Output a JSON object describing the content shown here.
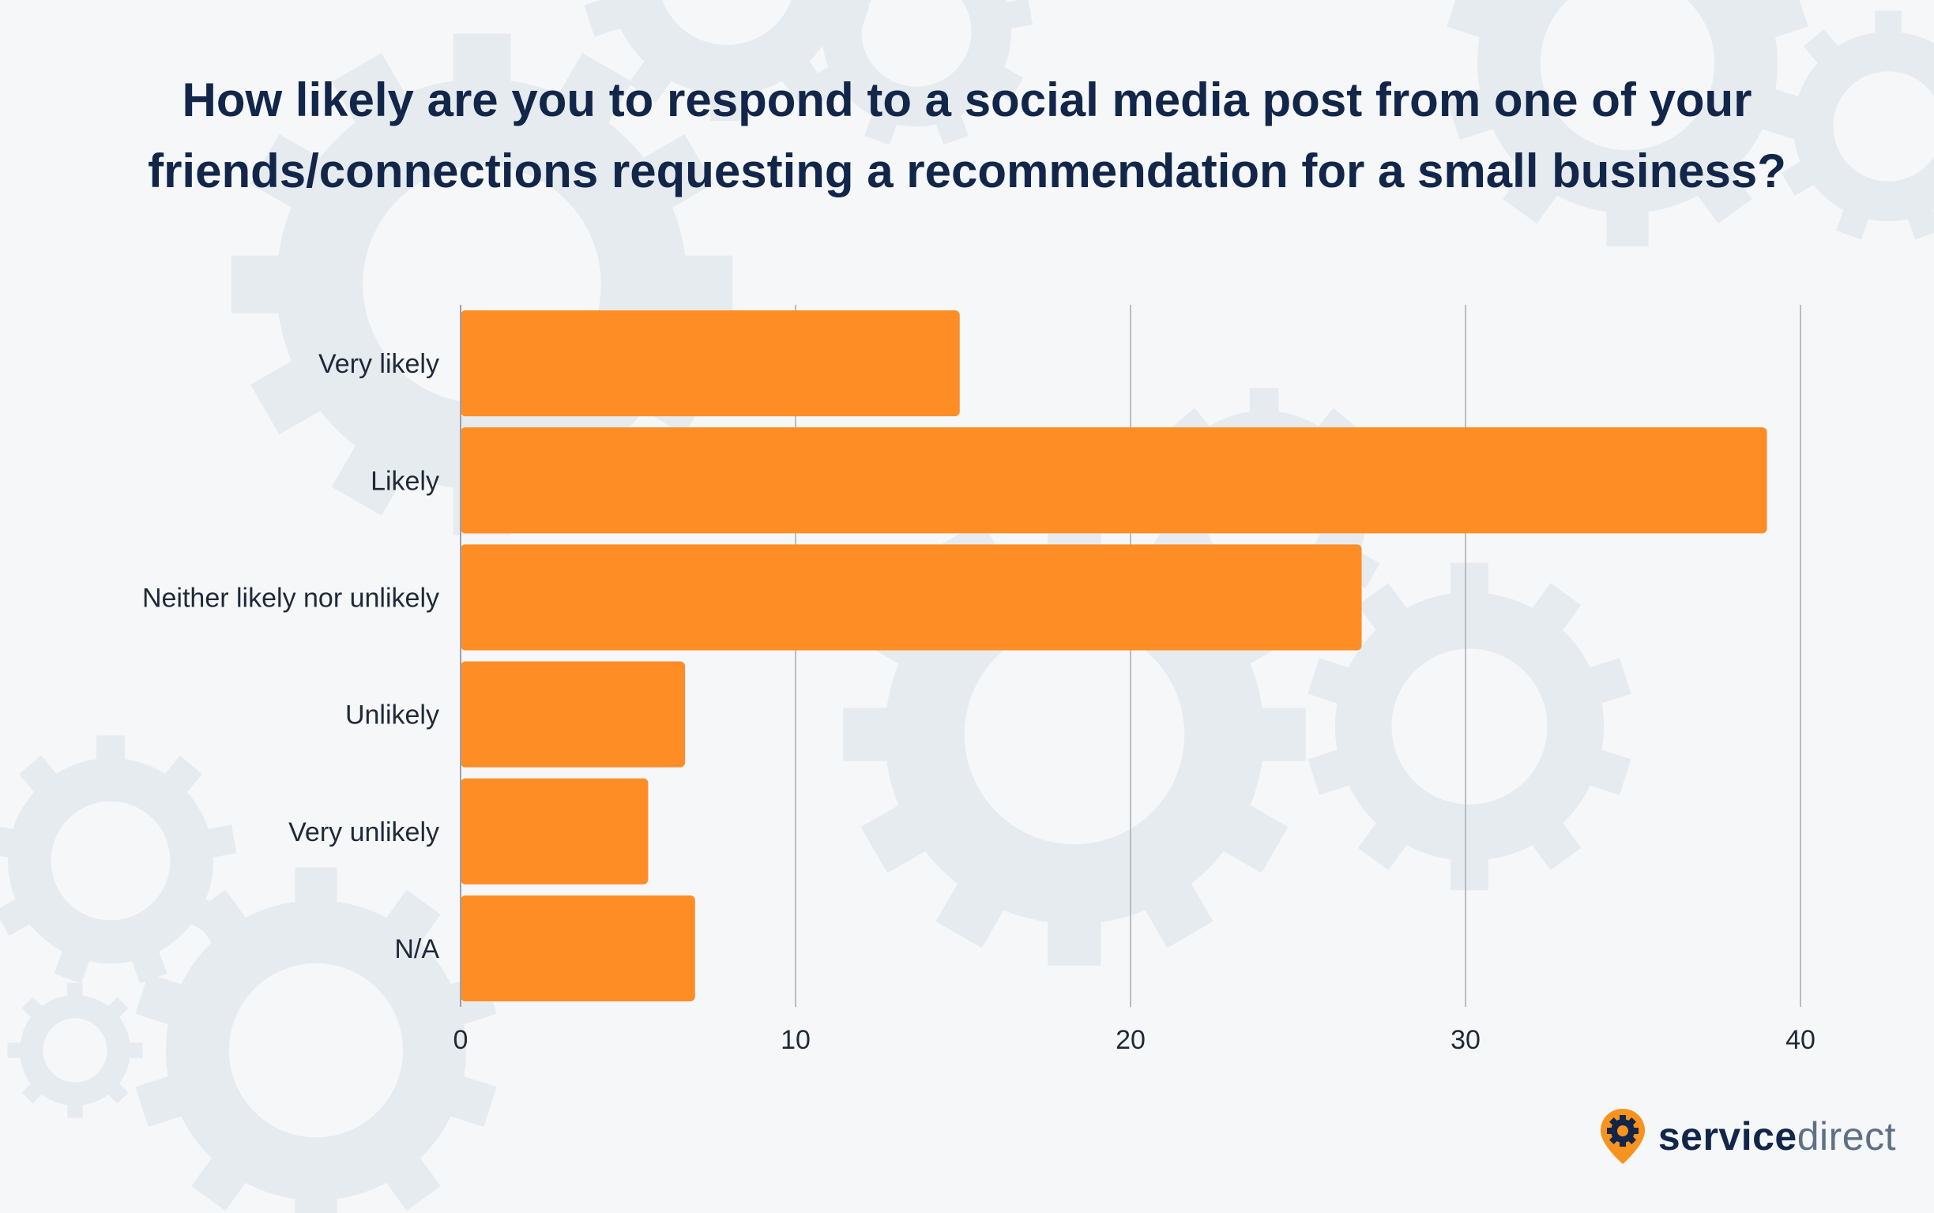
{
  "chart_data": {
    "type": "bar",
    "orientation": "horizontal",
    "title_lines": [
      "How likely are you to respond to a social media post from one of your",
      "friends/connections requesting a recommendation for a small business?"
    ],
    "categories": [
      "Very likely",
      "Likely",
      "Neither likely nor unlikely",
      "Unlikely",
      "Very unlikely",
      "N/A"
    ],
    "values": [
      14.9,
      39.0,
      26.9,
      6.7,
      5.6,
      7.0
    ],
    "xlim": [
      0,
      40
    ],
    "xticks": [
      0,
      10,
      20,
      30,
      40
    ],
    "grid": "vertical",
    "bar_color": "#ff8d26"
  },
  "brand": {
    "name_bold": "service",
    "name_light": "direct",
    "icon": "location-pin-gear-icon",
    "accent": "#f7931e",
    "dark": "#12264a"
  }
}
